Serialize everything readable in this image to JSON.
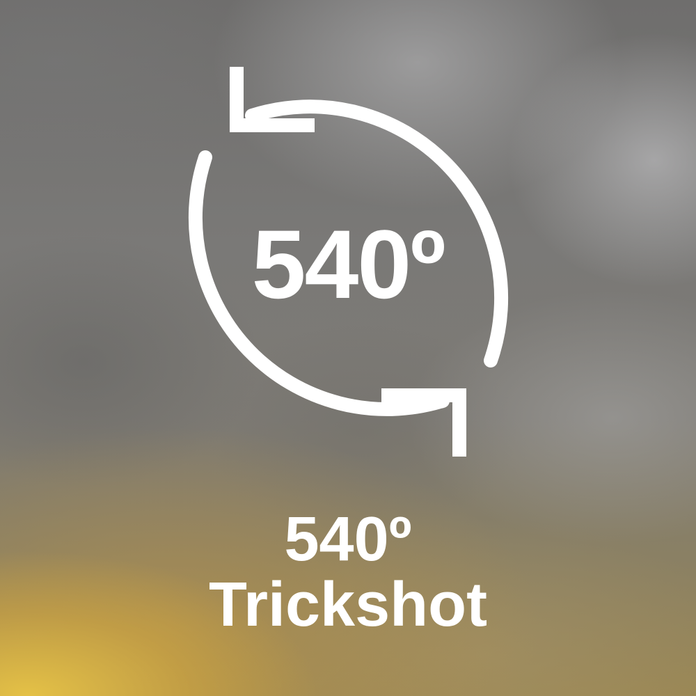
{
  "feature": {
    "icon": "rotate-arrows-icon",
    "badge": "540º",
    "title_line1": "540º",
    "title_line2": "Trickshot"
  },
  "colors": {
    "foreground": "#ffffff",
    "sky_gray": "#7c7b7a",
    "sun_yellow": "#e8c446"
  }
}
